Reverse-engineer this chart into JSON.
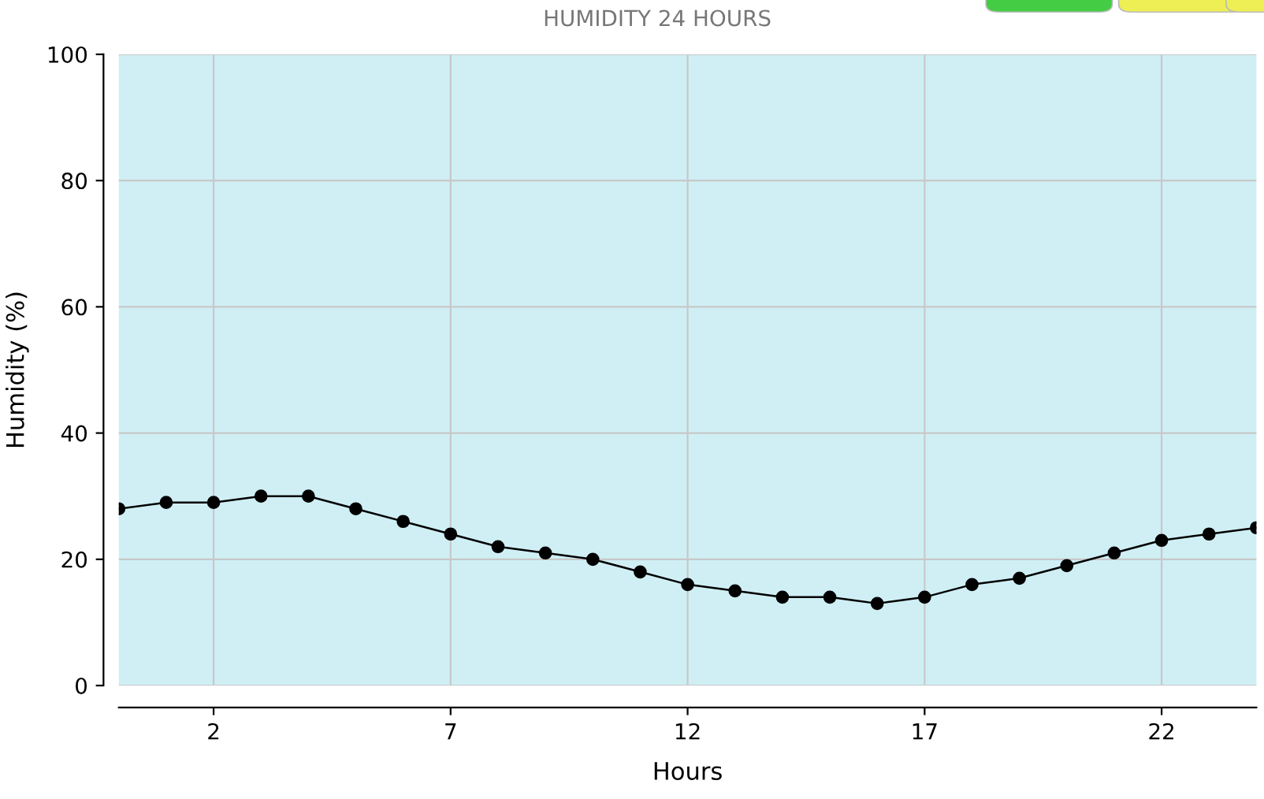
{
  "chart_data": {
    "type": "line",
    "title": "HUMIDITY 24 HOURS",
    "xlabel": "Hours",
    "ylabel": "Humidity (%)",
    "x": [
      0,
      1,
      2,
      3,
      4,
      5,
      6,
      7,
      8,
      9,
      10,
      11,
      12,
      13,
      14,
      15,
      16,
      17,
      18,
      19,
      20,
      21,
      22,
      23,
      24
    ],
    "series": [
      {
        "color": "#000000",
        "values": [
          28,
          29,
          29,
          30,
          30,
          28,
          26,
          24,
          22,
          21,
          20,
          18,
          16,
          15,
          14,
          14,
          13,
          14,
          16,
          17,
          19,
          21,
          23,
          24,
          25
        ]
      }
    ],
    "xlim": [
      0,
      24
    ],
    "xticks": [
      2,
      7,
      12,
      17,
      22
    ],
    "ylim": [
      0,
      100
    ],
    "yticks": [
      0,
      20,
      40,
      60,
      80,
      100
    ],
    "grid": true,
    "marker": "circle",
    "line_style": "solid"
  }
}
